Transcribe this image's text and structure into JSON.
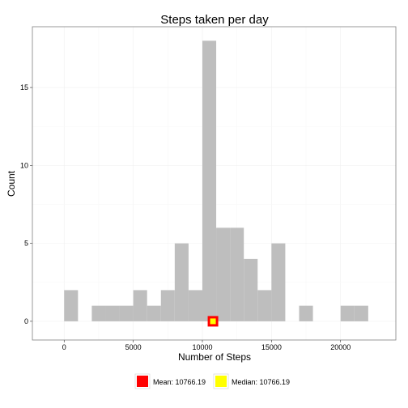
{
  "chart_data": {
    "type": "histogram",
    "title": "Steps taken per day",
    "xlabel": "Number of Steps",
    "ylabel": "Count",
    "xlim": [
      -2300,
      24000
    ],
    "ylim": [
      -1.2,
      18.9
    ],
    "x_ticks": [
      0,
      5000,
      10000,
      15000,
      20000
    ],
    "x_tick_labels": [
      "0",
      "5000",
      "10000",
      "15000",
      "20000"
    ],
    "y_ticks": [
      0,
      5,
      10,
      15
    ],
    "y_tick_labels": [
      "0",
      "5",
      "10",
      "15"
    ],
    "bin_width": 1000,
    "bins": [
      {
        "start": 0,
        "count": 2
      },
      {
        "start": 1000,
        "count": 0
      },
      {
        "start": 2000,
        "count": 1
      },
      {
        "start": 3000,
        "count": 1
      },
      {
        "start": 4000,
        "count": 1
      },
      {
        "start": 5000,
        "count": 2
      },
      {
        "start": 6000,
        "count": 1
      },
      {
        "start": 7000,
        "count": 2
      },
      {
        "start": 8000,
        "count": 5
      },
      {
        "start": 9000,
        "count": 2
      },
      {
        "start": 10000,
        "count": 18
      },
      {
        "start": 11000,
        "count": 6
      },
      {
        "start": 12000,
        "count": 6
      },
      {
        "start": 13000,
        "count": 4
      },
      {
        "start": 14000,
        "count": 2
      },
      {
        "start": 15000,
        "count": 5
      },
      {
        "start": 16000,
        "count": 0
      },
      {
        "start": 17000,
        "count": 1
      },
      {
        "start": 18000,
        "count": 0
      },
      {
        "start": 19000,
        "count": 0
      },
      {
        "start": 20000,
        "count": 1
      },
      {
        "start": 21000,
        "count": 1
      }
    ],
    "markers": [
      {
        "name": "Mean",
        "label": "Mean: 10766.19",
        "x": 10766.19,
        "y": 0,
        "color": "#ff0000",
        "size": "large"
      },
      {
        "name": "Median",
        "label": "Median: 10766.19",
        "x": 10766.19,
        "y": 0,
        "color": "#ffff00",
        "size": "small"
      }
    ],
    "legend_position": "bottom",
    "grid": true
  }
}
